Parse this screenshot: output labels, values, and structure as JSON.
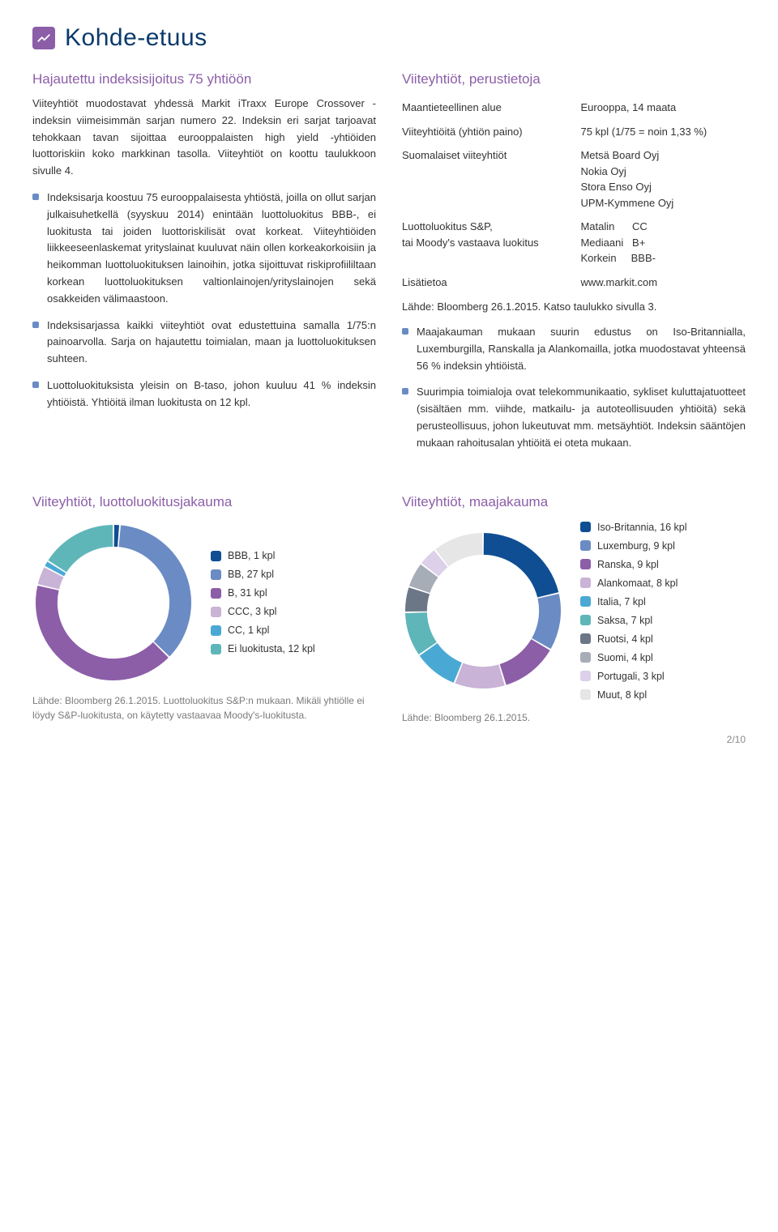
{
  "header": {
    "title": "Kohde-etuus",
    "icon_bg": "#8c5ea8",
    "icon_stroke": "#ffffff"
  },
  "left": {
    "subtitle": "Hajautettu indeksisijoitus 75 yhtiöön",
    "intro": "Viiteyhtiöt muodostavat yhdessä Markit iTraxx Europe Crossover -indeksin viimeisimmän sarjan numero 22. Indeksin eri sarjat tarjoavat tehokkaan tavan sijoittaa eurooppalaisten high yield -yhtiöiden luottoriskiin koko markkinan tasolla. Viiteyhtiöt on koottu taulukkoon sivulle 4.",
    "bullets": [
      "Indeksisarja koostuu 75 eurooppalaisesta yhtiöstä, joilla on ollut sarjan julkaisuhetkellä (syyskuu 2014) enintään luottoluokitus BBB-, ei luokitusta tai joiden luottoriskilisät ovat korkeat. Viiteyhtiöiden liikkeeseenlaskemat yrityslainat kuuluvat näin ollen korkeakorkoisiin ja heikomman luottoluokituksen lainoihin, jotka sijoittuvat riskiprofiililtaan korkean luottoluokituksen valtionlainojen/yrityslainojen sekä osakkeiden välimaastoon.",
      "Indeksisarjassa kaikki viiteyhtiöt ovat edustettuina samalla 1/75:n painoarvolla. Sarja on hajautettu toimialan, maan ja luottoluokituksen suhteen.",
      "Luottoluokituksista yleisin on B-taso, johon kuuluu 41 % indeksin yhtiöistä. Yhtiöitä ilman luokitusta on 12 kpl."
    ]
  },
  "right": {
    "subtitle": "Viiteyhtiöt, perustietoja",
    "rows": [
      {
        "label": "Maantieteellinen alue",
        "value": "Eurooppa, 14 maata"
      },
      {
        "label": "Viiteyhtiöitä (yhtiön paino)",
        "value": "75 kpl (1/75 = noin 1,33 %)"
      },
      {
        "label": "Suomalaiset viiteyhtiöt",
        "value": "Metsä Board Oyj\nNokia Oyj\nStora Enso Oyj\nUPM-Kymmene Oyj"
      },
      {
        "label": "Luottoluokitus S&P,\ntai Moody's vastaava luokitus",
        "value": "Matalin      CC\nMediaani   B+\nKorkein     BBB-"
      },
      {
        "label": "Lisätietoa",
        "value": "www.markit.com"
      }
    ],
    "source": "Lähde: Bloomberg 26.1.2015. Katso taulukko sivulla 3.",
    "bullets": [
      "Maajakauman mukaan suurin edustus on Iso-Britannialla, Luxemburgilla, Ranskalla ja Alankomailla, jotka muodostavat yhteensä 56 % indeksin yhtiöistä.",
      "Suurimpia toimialoja ovat telekommunikaatio, sykliset kuluttajatuotteet (sisältäen mm. viihde, matkailu- ja autoteollisuuden yhtiöitä) sekä perusteollisuus, johon lukeutuvat mm. metsäyhtiöt. Indeksin sääntöjen mukaan rahoitusalan yhtiöitä ei oteta mukaan."
    ]
  },
  "chart1": {
    "title": "Viiteyhtiöt, luottoluokitusjakauma",
    "type": "donut",
    "total": 75,
    "inner_ratio": 0.72,
    "background": "#ffffff",
    "segments": [
      {
        "label": "BBB, 1 kpl",
        "value": 1,
        "color": "#0f4e92"
      },
      {
        "label": "BB, 27 kpl",
        "value": 27,
        "color": "#6a8bc3"
      },
      {
        "label": "B, 31 kpl",
        "value": 31,
        "color": "#8c5ea8"
      },
      {
        "label": "CCC, 3 kpl",
        "value": 3,
        "color": "#c9b3d6"
      },
      {
        "label": "CC, 1 kpl",
        "value": 1,
        "color": "#4aa9d4"
      },
      {
        "label": "Ei luokitusta, 12 kpl",
        "value": 12,
        "color": "#5eb6b9"
      }
    ],
    "note": "Lähde: Bloomberg 26.1.2015. Luottoluokitus S&P:n mukaan. Mikäli yhtiölle ei löydy S&P-luokitusta, on käytetty vastaavaa Moody's-luokitusta."
  },
  "chart2": {
    "title": "Viiteyhtiöt, maajakauma",
    "type": "donut",
    "total": 75,
    "inner_ratio": 0.72,
    "background": "#ffffff",
    "segments": [
      {
        "label": "Iso-Britannia, 16 kpl",
        "value": 16,
        "color": "#0f4e92"
      },
      {
        "label": "Luxemburg, 9 kpl",
        "value": 9,
        "color": "#6a8bc3"
      },
      {
        "label": "Ranska, 9 kpl",
        "value": 9,
        "color": "#8c5ea8"
      },
      {
        "label": "Alankomaat, 8 kpl",
        "value": 8,
        "color": "#c9b3d6"
      },
      {
        "label": "Italia, 7 kpl",
        "value": 7,
        "color": "#4aa9d4"
      },
      {
        "label": "Saksa, 7 kpl",
        "value": 7,
        "color": "#5eb6b9"
      },
      {
        "label": "Ruotsi, 4 kpl",
        "value": 4,
        "color": "#6b7686"
      },
      {
        "label": "Suomi, 4 kpl",
        "value": 4,
        "color": "#a6adb7"
      },
      {
        "label": "Portugali, 3 kpl",
        "value": 3,
        "color": "#dcd0eb"
      },
      {
        "label": "Muut, 8 kpl",
        "value": 8,
        "color": "#e6e6e6"
      }
    ],
    "note": "Lähde: Bloomberg 26.1.2015."
  },
  "footer": {
    "page": "2/10"
  }
}
